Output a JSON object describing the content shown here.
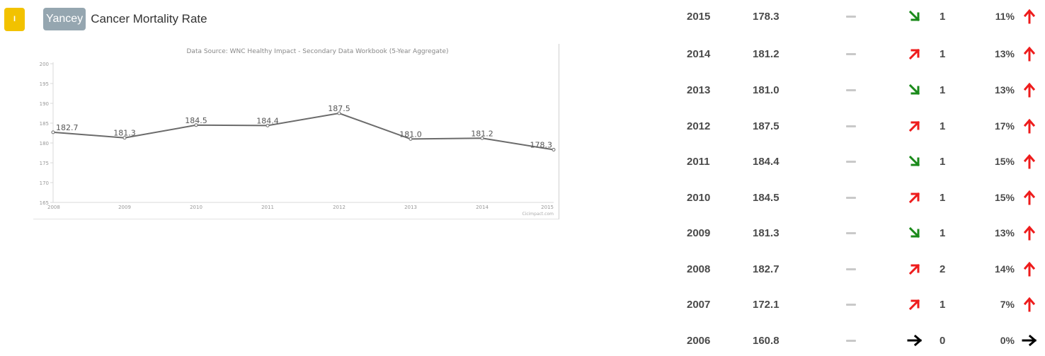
{
  "header": {
    "badge_label": "I",
    "county": "Yancey",
    "title": "Cancer Mortality Rate"
  },
  "colors": {
    "badge": "#f2c200",
    "county_tag": "#95a6b0",
    "line": "#6b6b6b",
    "arrow_up_red": "#ee1c1c",
    "arrow_down_green": "#1a8a1a",
    "arrow_neutral": "#000000"
  },
  "chart_data": {
    "type": "line",
    "title": "Data Source: WNC Healthy Impact - Secondary Data Workbook (5-Year Aggregate)",
    "watermark": "Cicimpact.com",
    "x": [
      "2008",
      "2009",
      "2010",
      "2011",
      "2012",
      "2013",
      "2014",
      "2015"
    ],
    "series": [
      {
        "values": [
          182.7,
          181.3,
          184.5,
          184.4,
          187.5,
          181.0,
          181.2,
          178.3
        ]
      }
    ],
    "point_labels": [
      "182.7",
      "181.3",
      "184.5",
      "184.4",
      "187.5",
      "181.0",
      "181.2",
      "178.3"
    ],
    "y_ticks": [
      "165",
      "170",
      "175",
      "180",
      "185",
      "190",
      "195",
      "200"
    ],
    "ylim": [
      165,
      200
    ],
    "xlabel": "",
    "ylabel": "",
    "grid": false,
    "legend": "none"
  },
  "trend_rows": [
    {
      "year": "2015",
      "value": "178.3",
      "trend": "down",
      "trend_icon": "arrow-down-right-icon",
      "count": "1",
      "percent": "11%",
      "pct_icon": "arrow-up-icon"
    },
    {
      "year": "2014",
      "value": "181.2",
      "trend": "up",
      "trend_icon": "arrow-up-right-icon",
      "count": "1",
      "percent": "13%",
      "pct_icon": "arrow-up-icon"
    },
    {
      "year": "2013",
      "value": "181.0",
      "trend": "down",
      "trend_icon": "arrow-down-right-icon",
      "count": "1",
      "percent": "13%",
      "pct_icon": "arrow-up-icon"
    },
    {
      "year": "2012",
      "value": "187.5",
      "trend": "up",
      "trend_icon": "arrow-up-right-icon",
      "count": "1",
      "percent": "17%",
      "pct_icon": "arrow-up-icon"
    },
    {
      "year": "2011",
      "value": "184.4",
      "trend": "down",
      "trend_icon": "arrow-down-right-icon",
      "count": "1",
      "percent": "15%",
      "pct_icon": "arrow-up-icon"
    },
    {
      "year": "2010",
      "value": "184.5",
      "trend": "up",
      "trend_icon": "arrow-up-right-icon",
      "count": "1",
      "percent": "15%",
      "pct_icon": "arrow-up-icon"
    },
    {
      "year": "2009",
      "value": "181.3",
      "trend": "down",
      "trend_icon": "arrow-down-right-icon",
      "count": "1",
      "percent": "13%",
      "pct_icon": "arrow-up-icon"
    },
    {
      "year": "2008",
      "value": "182.7",
      "trend": "up",
      "trend_icon": "arrow-up-right-icon",
      "count": "2",
      "percent": "14%",
      "pct_icon": "arrow-up-icon"
    },
    {
      "year": "2007",
      "value": "172.1",
      "trend": "up",
      "trend_icon": "arrow-up-right-icon",
      "count": "1",
      "percent": "7%",
      "pct_icon": "arrow-up-icon"
    },
    {
      "year": "2006",
      "value": "160.8",
      "trend": "flat",
      "trend_icon": "arrow-right-icon",
      "count": "0",
      "percent": "0%",
      "pct_icon": "arrow-right-icon"
    }
  ]
}
